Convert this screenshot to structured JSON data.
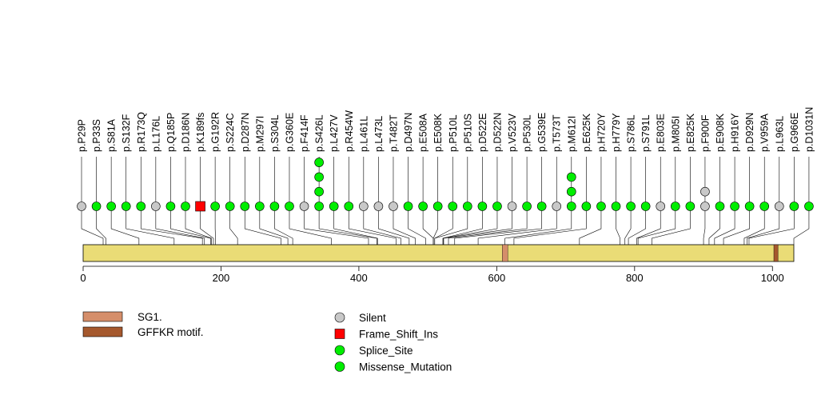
{
  "chart_data": {
    "type": "lollipop",
    "title": "",
    "protein_length": 1031,
    "x_ticks": [
      0,
      200,
      400,
      600,
      800,
      1000
    ],
    "domains": [
      {
        "name": "SG1.",
        "start": 608,
        "end": 616,
        "color": "#D58E6A"
      },
      {
        "name": "GFFKR motif.",
        "start": 1002,
        "end": 1008,
        "color": "#A5582D"
      }
    ],
    "mutation_types": {
      "Silent": "#C8C8C8",
      "Frame_Shift_Ins": "#FF0000",
      "Splice_Site": "#00EE00",
      "Missense_Mutation": "#00EE00"
    },
    "legend": {
      "domains": [
        "SG1.",
        "GFFKR motif."
      ],
      "mutations": [
        "Silent",
        "Frame_Shift_Ins",
        "Splice_Site",
        "Missense_Mutation"
      ]
    },
    "mutations": [
      {
        "label": "p.P29P",
        "position": 29,
        "count": 1,
        "type": "Silent"
      },
      {
        "label": "p.P33S",
        "position": 33,
        "count": 1,
        "type": "Missense_Mutation"
      },
      {
        "label": "p.S81A",
        "position": 81,
        "count": 1,
        "type": "Missense_Mutation"
      },
      {
        "label": "p.S132F",
        "position": 132,
        "count": 1,
        "type": "Missense_Mutation"
      },
      {
        "label": "p.R173Q",
        "position": 173,
        "count": 1,
        "type": "Missense_Mutation"
      },
      {
        "label": "p.L176L",
        "position": 176,
        "count": 1,
        "type": "Silent"
      },
      {
        "label": "p.Q185P",
        "position": 185,
        "count": 1,
        "type": "Missense_Mutation"
      },
      {
        "label": "p.D186N",
        "position": 186,
        "count": 1,
        "type": "Missense_Mutation"
      },
      {
        "label": "p.K189fs",
        "position": 189,
        "count": 1,
        "type": "Frame_Shift_Ins"
      },
      {
        "label": "p.G192R",
        "position": 192,
        "count": 1,
        "type": "Missense_Mutation"
      },
      {
        "label": "p.S224C",
        "position": 224,
        "count": 1,
        "type": "Missense_Mutation"
      },
      {
        "label": "p.D287N",
        "position": 287,
        "count": 1,
        "type": "Missense_Mutation"
      },
      {
        "label": "p.M297I",
        "position": 297,
        "count": 1,
        "type": "Missense_Mutation"
      },
      {
        "label": "p.S304L",
        "position": 304,
        "count": 1,
        "type": "Missense_Mutation"
      },
      {
        "label": "p.G360E",
        "position": 360,
        "count": 1,
        "type": "Missense_Mutation"
      },
      {
        "label": "p.F414F",
        "position": 414,
        "count": 1,
        "type": "Silent"
      },
      {
        "label": "p.S426L",
        "position": 426,
        "count": 4,
        "type": "Missense_Mutation"
      },
      {
        "label": "p.L427V",
        "position": 427,
        "count": 1,
        "type": "Missense_Mutation"
      },
      {
        "label": "p.R454W",
        "position": 454,
        "count": 1,
        "type": "Missense_Mutation"
      },
      {
        "label": "p.L461L",
        "position": 461,
        "count": 1,
        "type": "Silent"
      },
      {
        "label": "p.L473L",
        "position": 473,
        "count": 1,
        "type": "Silent"
      },
      {
        "label": "p.T482T",
        "position": 482,
        "count": 1,
        "type": "Silent"
      },
      {
        "label": "p.D497N",
        "position": 497,
        "count": 1,
        "type": "Missense_Mutation"
      },
      {
        "label": "p.E508A",
        "position": 508,
        "count": 1,
        "type": "Missense_Mutation"
      },
      {
        "label": "p.E508K",
        "position": 508,
        "count": 1,
        "type": "Missense_Mutation"
      },
      {
        "label": "p.P510L",
        "position": 510,
        "count": 1,
        "type": "Missense_Mutation"
      },
      {
        "label": "p.P510S",
        "position": 510,
        "count": 1,
        "type": "Missense_Mutation"
      },
      {
        "label": "p.D522E",
        "position": 522,
        "count": 1,
        "type": "Missense_Mutation"
      },
      {
        "label": "p.D522N",
        "position": 522,
        "count": 1,
        "type": "Missense_Mutation"
      },
      {
        "label": "p.V523V",
        "position": 523,
        "count": 1,
        "type": "Silent"
      },
      {
        "label": "p.P530L",
        "position": 530,
        "count": 1,
        "type": "Missense_Mutation"
      },
      {
        "label": "p.G539E",
        "position": 539,
        "count": 1,
        "type": "Missense_Mutation"
      },
      {
        "label": "p.T573T",
        "position": 573,
        "count": 1,
        "type": "Silent"
      },
      {
        "label": "p.M612I",
        "position": 612,
        "count": 3,
        "type": "Missense_Mutation"
      },
      {
        "label": "p.E625K",
        "position": 625,
        "count": 1,
        "type": "Missense_Mutation"
      },
      {
        "label": "p.H720Y",
        "position": 720,
        "count": 1,
        "type": "Missense_Mutation"
      },
      {
        "label": "p.H779Y",
        "position": 779,
        "count": 1,
        "type": "Missense_Mutation"
      },
      {
        "label": "p.S786L",
        "position": 786,
        "count": 1,
        "type": "Missense_Mutation"
      },
      {
        "label": "p.S791L",
        "position": 791,
        "count": 1,
        "type": "Missense_Mutation"
      },
      {
        "label": "p.E803E",
        "position": 803,
        "count": 1,
        "type": "Silent"
      },
      {
        "label": "p.M805I",
        "position": 805,
        "count": 1,
        "type": "Missense_Mutation"
      },
      {
        "label": "p.E825K",
        "position": 825,
        "count": 1,
        "type": "Missense_Mutation"
      },
      {
        "label": "p.F900F",
        "position": 900,
        "count": 2,
        "type": "Silent"
      },
      {
        "label": "p.E908K",
        "position": 908,
        "count": 1,
        "type": "Missense_Mutation"
      },
      {
        "label": "p.H916Y",
        "position": 916,
        "count": 1,
        "type": "Missense_Mutation"
      },
      {
        "label": "p.D929N",
        "position": 929,
        "count": 1,
        "type": "Missense_Mutation"
      },
      {
        "label": "p.V959A",
        "position": 959,
        "count": 1,
        "type": "Missense_Mutation"
      },
      {
        "label": "p.L963L",
        "position": 963,
        "count": 1,
        "type": "Silent"
      },
      {
        "label": "p.G966E",
        "position": 966,
        "count": 1,
        "type": "Missense_Mutation"
      },
      {
        "label": "p.D1031N",
        "position": 1031,
        "count": 1,
        "type": "Missense_Mutation"
      }
    ]
  }
}
